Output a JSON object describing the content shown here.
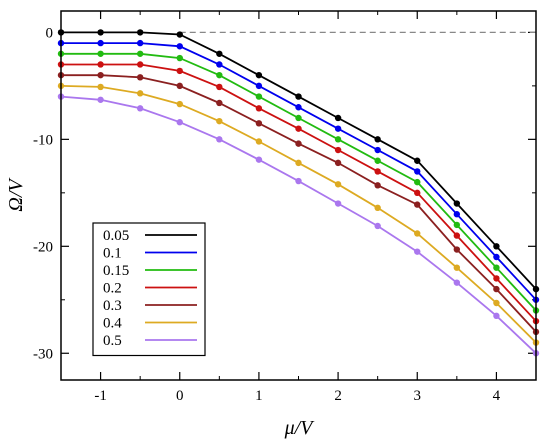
{
  "chart_data": {
    "type": "line",
    "xlabel": "μ/V",
    "ylabel": "Ω/V",
    "xlim": [
      -1.5,
      4.5
    ],
    "ylim": [
      -32.5,
      2.0
    ],
    "x_ticks": [
      -1,
      0,
      1,
      2,
      3,
      4
    ],
    "x_tick_labels": [
      "-1",
      "0",
      "1",
      "2",
      "3",
      "4"
    ],
    "y_ticks": [
      0,
      -10,
      -20,
      -30
    ],
    "y_tick_labels": [
      "0",
      "-10",
      "-20",
      "-30"
    ],
    "reference_line": 0,
    "grid": false,
    "legend_position": "bottom-left",
    "series": [
      {
        "name": "0.05",
        "color": "#000000",
        "x": [
          -1.5,
          -1,
          -0.5,
          0,
          0.5,
          1,
          1.5,
          2,
          2.5,
          3,
          3.5,
          4,
          4.5
        ],
        "y": [
          0.0,
          0.0,
          0.0,
          -0.2,
          -2.0,
          -4.0,
          -6.0,
          -8.0,
          -10.0,
          -12.0,
          -16.0,
          -20.0,
          -24.0
        ]
      },
      {
        "name": "0.1",
        "color": "#0000ee",
        "x": [
          -1.5,
          -1,
          -0.5,
          0,
          0.5,
          1,
          1.5,
          2,
          2.5,
          3,
          3.5,
          4,
          4.5
        ],
        "y": [
          -1.0,
          -1.0,
          -1.0,
          -1.3,
          -3.0,
          -5.0,
          -7.0,
          -9.0,
          -11.0,
          -13.0,
          -17.0,
          -21.0,
          -25.0
        ]
      },
      {
        "name": "0.15",
        "color": "#22bb11",
        "x": [
          -1.5,
          -1,
          -0.5,
          0,
          0.5,
          1,
          1.5,
          2,
          2.5,
          3,
          3.5,
          4,
          4.5
        ],
        "y": [
          -2.0,
          -2.0,
          -2.0,
          -2.4,
          -4.0,
          -6.0,
          -8.0,
          -10.0,
          -12.0,
          -14.0,
          -18.0,
          -22.0,
          -26.0
        ]
      },
      {
        "name": "0.2",
        "color": "#cc1111",
        "x": [
          -1.5,
          -1,
          -0.5,
          0,
          0.5,
          1,
          1.5,
          2,
          2.5,
          3,
          3.5,
          4,
          4.5
        ],
        "y": [
          -3.0,
          -3.0,
          -3.0,
          -3.6,
          -5.1,
          -7.1,
          -9.0,
          -11.0,
          -13.0,
          -15.0,
          -19.0,
          -23.0,
          -27.0
        ]
      },
      {
        "name": "0.3",
        "color": "#8b2020",
        "x": [
          -1.5,
          -1,
          -0.5,
          0,
          0.5,
          1,
          1.5,
          2,
          2.5,
          3,
          3.5,
          4,
          4.5
        ],
        "y": [
          -4.0,
          -4.0,
          -4.2,
          -5.0,
          -6.6,
          -8.5,
          -10.4,
          -12.2,
          -14.3,
          -16.1,
          -20.3,
          -24.0,
          -28.0
        ]
      },
      {
        "name": "0.4",
        "color": "#ddaa22",
        "x": [
          -1.5,
          -1,
          -0.5,
          0,
          0.5,
          1,
          1.5,
          2,
          2.5,
          3,
          3.5,
          4,
          4.5
        ],
        "y": [
          -5.0,
          -5.1,
          -5.7,
          -6.7,
          -8.3,
          -10.2,
          -12.2,
          -14.2,
          -16.4,
          -18.8,
          -22.0,
          -25.3,
          -29.0
        ]
      },
      {
        "name": "0.5",
        "color": "#aa77ee",
        "x": [
          -1.5,
          -1,
          -0.5,
          0,
          0.5,
          1,
          1.5,
          2,
          2.5,
          3,
          3.5,
          4,
          4.5
        ],
        "y": [
          -6.0,
          -6.3,
          -7.1,
          -8.4,
          -10.0,
          -11.9,
          -13.9,
          -16.0,
          -18.1,
          -20.5,
          -23.4,
          -26.5,
          -30.0
        ]
      }
    ]
  }
}
